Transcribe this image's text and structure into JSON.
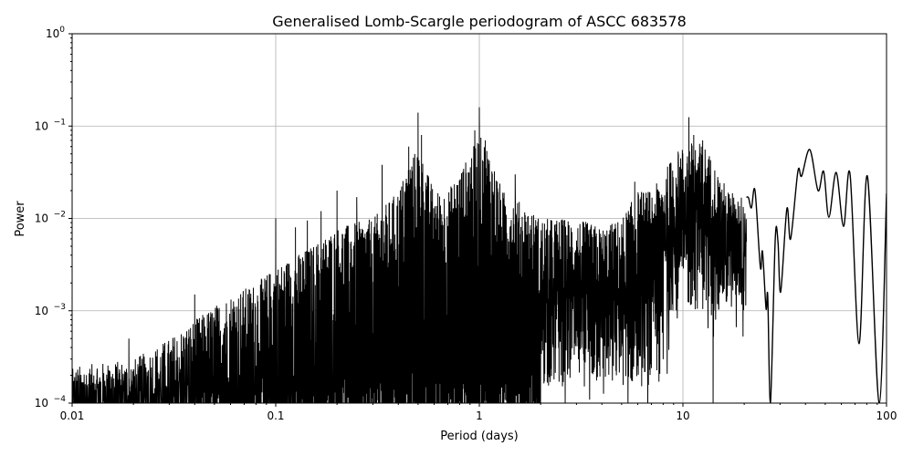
{
  "chart_data": {
    "type": "line",
    "title": "Generalised Lomb-Scargle periodogram of ASCC 683578",
    "xlabel": "Period (days)",
    "ylabel": "Power",
    "xscale": "log",
    "yscale": "log",
    "xlim": [
      0.01,
      100
    ],
    "ylim": [
      0.0001,
      1
    ],
    "grid": true,
    "line_color": "#000000",
    "grid_color": "#b0b0b0",
    "x_ticks": [
      {
        "value": 0.01,
        "label": "0.01"
      },
      {
        "value": 0.1,
        "label": "0.1"
      },
      {
        "value": 1,
        "label": "1"
      },
      {
        "value": 10,
        "label": "10"
      },
      {
        "value": 100,
        "label": "100"
      }
    ],
    "y_ticks": [
      {
        "value": 0.0001,
        "base": "10",
        "exp": "−4"
      },
      {
        "value": 0.001,
        "base": "10",
        "exp": "−3"
      },
      {
        "value": 0.01,
        "base": "10",
        "exp": "−2"
      },
      {
        "value": 0.1,
        "base": "10",
        "exp": "−1"
      },
      {
        "value": 1,
        "base": "10",
        "exp": "0"
      }
    ],
    "dense_region": {
      "period_range": [
        0.01,
        20.5
      ],
      "envelope": [
        [
          0.01,
          0.00025
        ],
        [
          0.015,
          0.00028
        ],
        [
          0.02,
          0.0003
        ],
        [
          0.03,
          0.0005
        ],
        [
          0.04,
          0.0008
        ],
        [
          0.06,
          0.0015
        ],
        [
          0.08,
          0.002
        ],
        [
          0.1,
          0.003
        ],
        [
          0.15,
          0.005
        ],
        [
          0.2,
          0.008
        ],
        [
          0.3,
          0.01
        ],
        [
          0.4,
          0.02
        ],
        [
          0.45,
          0.04
        ],
        [
          0.5,
          0.06
        ],
        [
          0.6,
          0.02
        ],
        [
          0.7,
          0.02
        ],
        [
          0.85,
          0.04
        ],
        [
          1.0,
          0.08
        ],
        [
          1.1,
          0.06
        ],
        [
          1.3,
          0.02
        ],
        [
          1.6,
          0.015
        ],
        [
          2.0,
          0.01
        ],
        [
          3.0,
          0.01
        ],
        [
          4.0,
          0.008
        ],
        [
          5.0,
          0.01
        ],
        [
          6.0,
          0.02
        ],
        [
          7.0,
          0.02
        ],
        [
          8.0,
          0.03
        ],
        [
          9.0,
          0.05
        ],
        [
          10.0,
          0.06
        ],
        [
          11.5,
          0.07
        ],
        [
          13.0,
          0.06
        ],
        [
          15.0,
          0.03
        ],
        [
          17.0,
          0.02
        ],
        [
          20.5,
          0.017
        ]
      ],
      "peaks": [
        [
          0.019,
          0.0005
        ],
        [
          0.04,
          0.0015
        ],
        [
          0.1,
          0.01
        ],
        [
          0.125,
          0.008
        ],
        [
          0.143,
          0.0095
        ],
        [
          0.167,
          0.012
        ],
        [
          0.2,
          0.02
        ],
        [
          0.25,
          0.017
        ],
        [
          0.333,
          0.038
        ],
        [
          0.45,
          0.06
        ],
        [
          0.5,
          0.14
        ],
        [
          0.52,
          0.08
        ],
        [
          0.95,
          0.09
        ],
        [
          1.0,
          0.16
        ],
        [
          1.07,
          0.07
        ],
        [
          1.5,
          0.03
        ],
        [
          5.8,
          0.025
        ],
        [
          9.5,
          0.05
        ],
        [
          10.7,
          0.125
        ],
        [
          11.3,
          0.08
        ],
        [
          12.5,
          0.07
        ]
      ]
    },
    "smooth_region": [
      [
        20.5,
        0.017
      ],
      [
        21.0,
        0.0167
      ],
      [
        21.7,
        0.013
      ],
      [
        22.6,
        0.02
      ],
      [
        24.0,
        0.00296
      ],
      [
        24.6,
        0.00436
      ],
      [
        25.6,
        0.00106
      ],
      [
        26.1,
        0.00143
      ],
      [
        26.9,
        0.0001
      ],
      [
        28.4,
        0.00586
      ],
      [
        29.3,
        0.0056
      ],
      [
        30.2,
        0.0016
      ],
      [
        32.4,
        0.0127
      ],
      [
        33.8,
        0.006
      ],
      [
        36.7,
        0.0323
      ],
      [
        38.3,
        0.0288
      ],
      [
        42.0,
        0.0557
      ],
      [
        46.1,
        0.02
      ],
      [
        49.1,
        0.0323
      ],
      [
        52.1,
        0.0103
      ],
      [
        56.6,
        0.0315
      ],
      [
        61.5,
        0.0082
      ],
      [
        66.2,
        0.0301
      ],
      [
        73.3,
        0.00044
      ],
      [
        80.5,
        0.0288
      ],
      [
        92.0,
        0.0001
      ],
      [
        100,
        0.0187
      ]
    ]
  }
}
